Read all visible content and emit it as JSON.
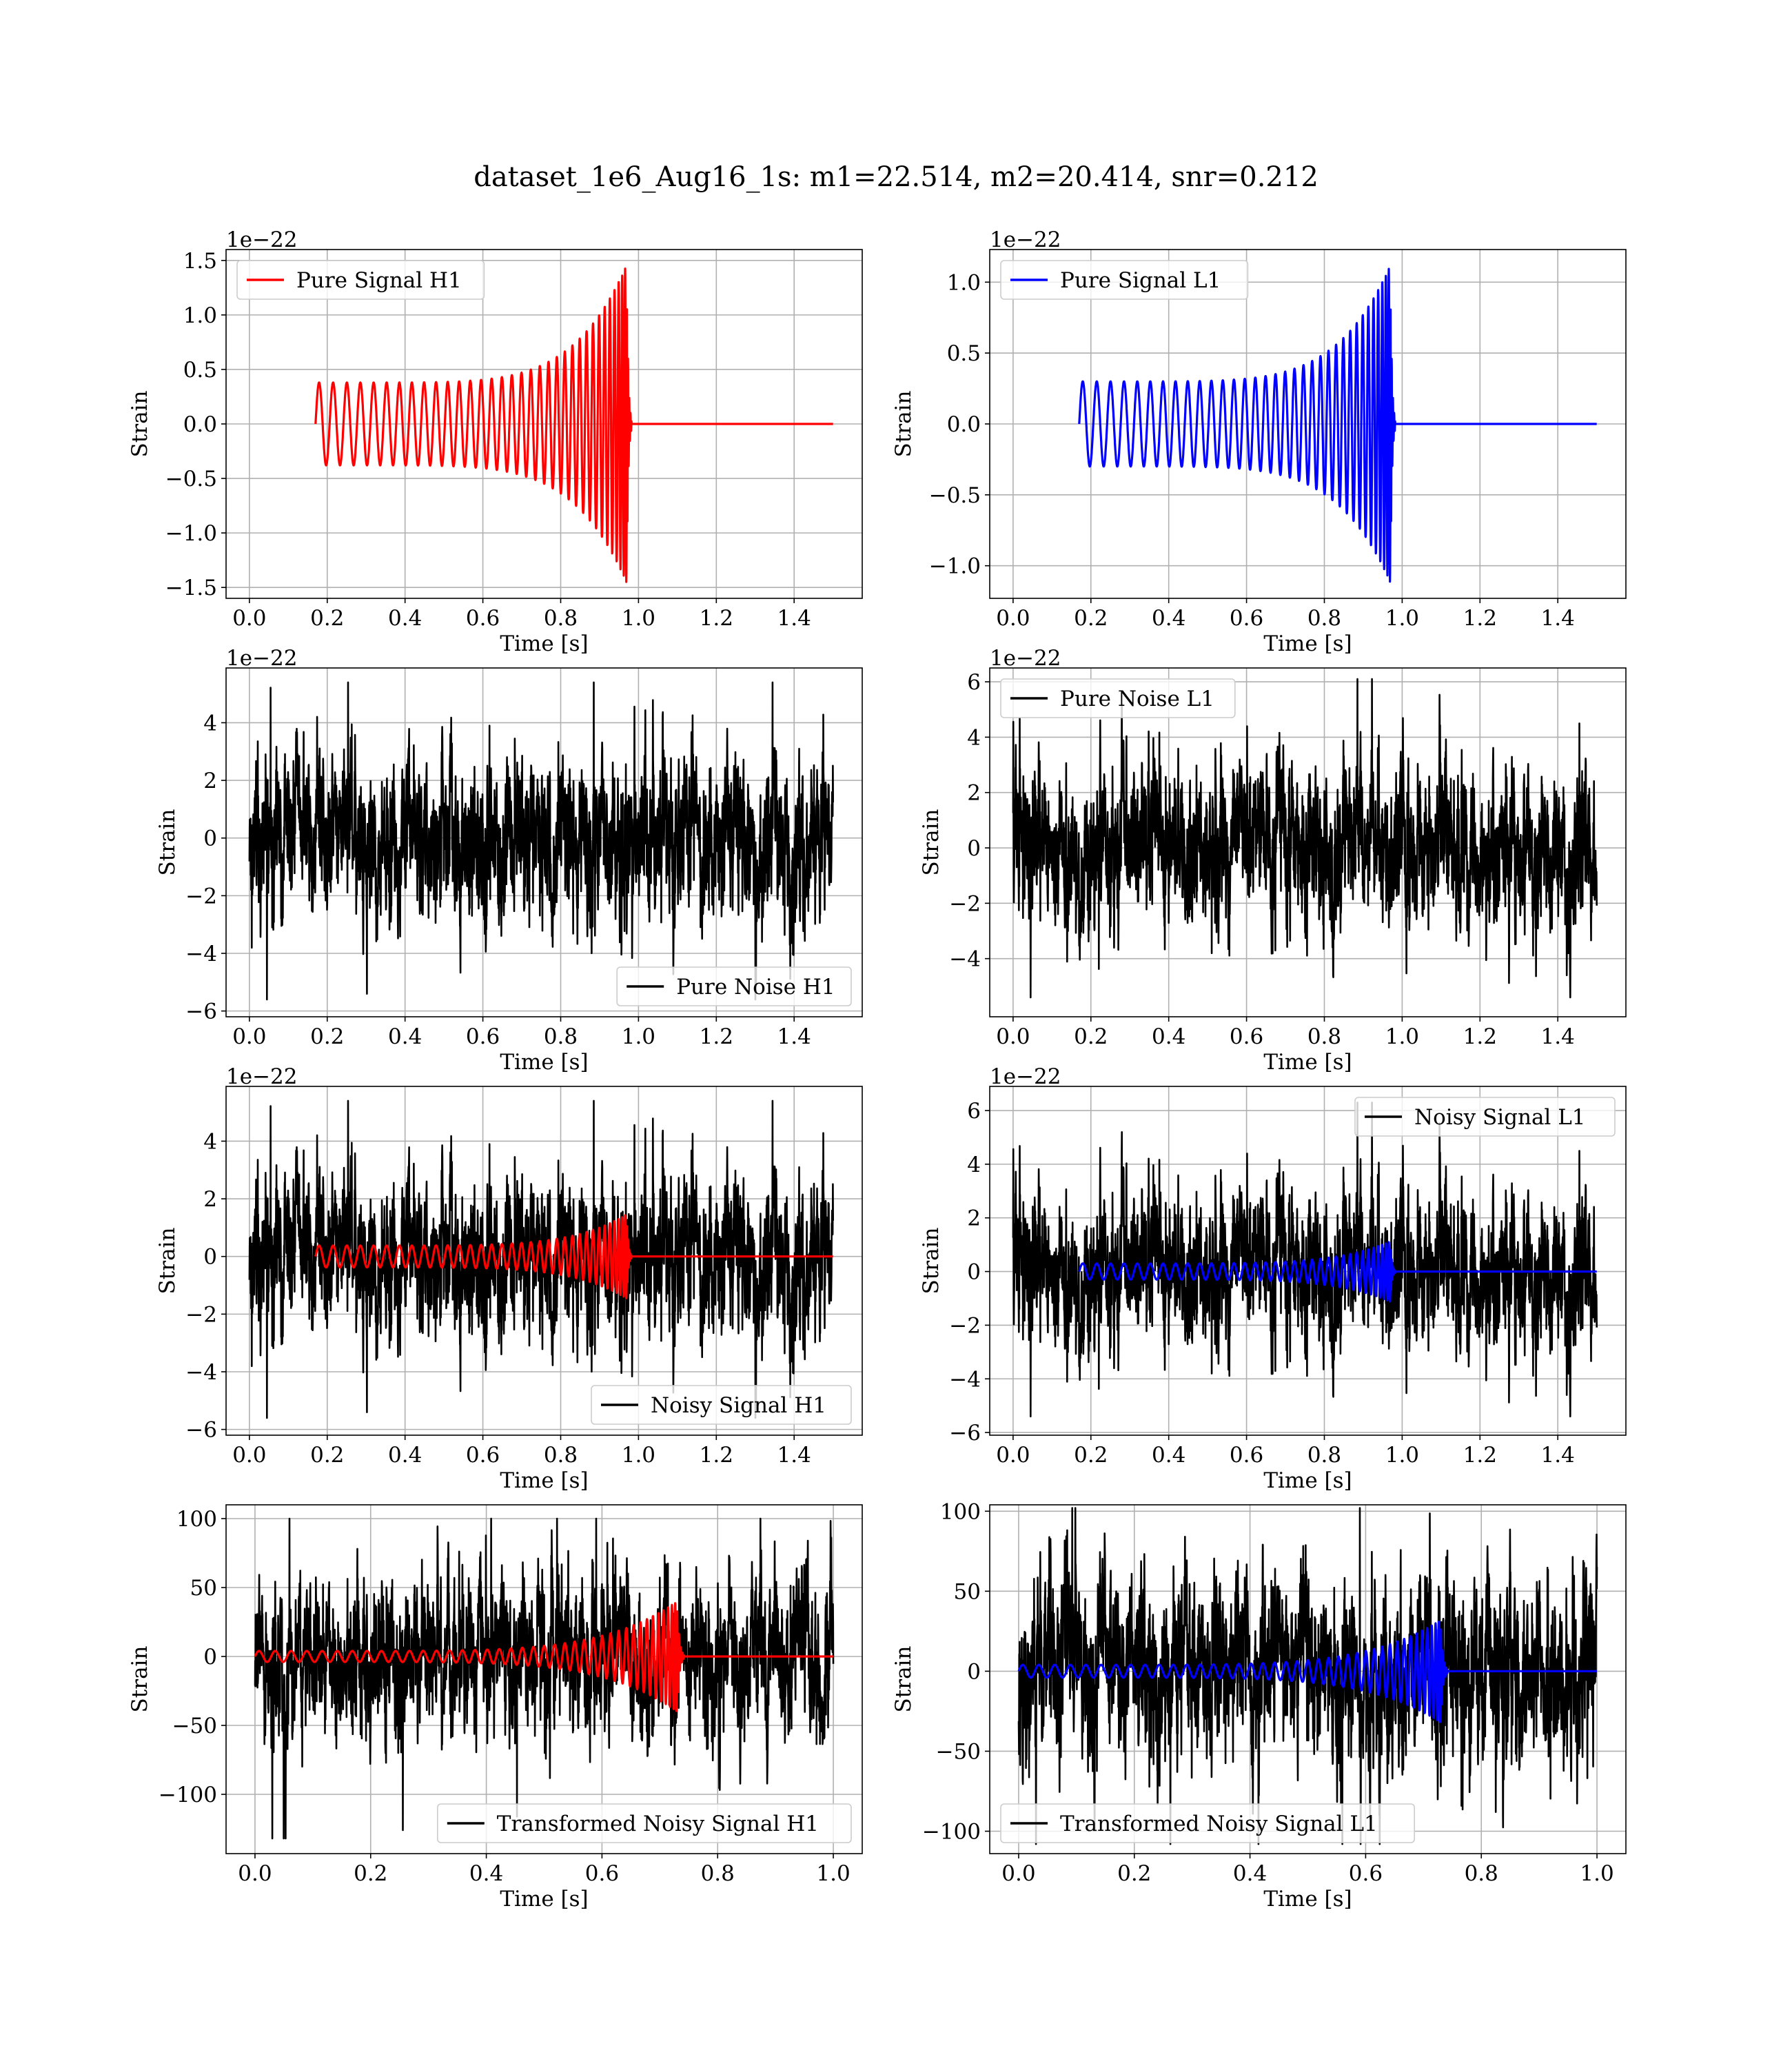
{
  "figure": {
    "suptitle": "dataset_1e6_Aug16_1s: m1=22.514, m2=20.414, snr=0.212"
  },
  "colors": {
    "h1_signal": "#ff0000",
    "l1_signal": "#0000ff",
    "noise": "#000000",
    "grid": "#b0b0b0"
  },
  "chart_data": [
    {
      "id": "pure-signal-h1",
      "type": "line",
      "xlabel": "Time [s]",
      "ylabel": "Strain",
      "offset_text": "1e−22",
      "xlim": [
        -0.06,
        1.575
      ],
      "ylim": [
        -1.6,
        1.6
      ],
      "xticks": [
        0.0,
        0.2,
        0.4,
        0.6,
        0.8,
        1.0,
        1.2,
        1.4
      ],
      "xtick_labels": [
        "0.0",
        "0.2",
        "0.4",
        "0.6",
        "0.8",
        "1.0",
        "1.2",
        "1.4"
      ],
      "yticks": [
        -1.5,
        -1.0,
        -0.5,
        0.0,
        0.5,
        1.0,
        1.5
      ],
      "ytick_labels": [
        "−1.5",
        "−1.0",
        "−0.5",
        "0.0",
        "0.5",
        "1.0",
        "1.5"
      ],
      "grid": true,
      "legend": {
        "placement": "upper-left",
        "entries": [
          {
            "label": "Pure Signal H1",
            "color": "#ff0000"
          }
        ]
      },
      "series": [
        {
          "label": "Pure Signal H1",
          "kind": "chirp",
          "color": "#ff0000",
          "t_start": 0.17,
          "t_merge": 0.97,
          "t_end": 1.5,
          "cycles": 34,
          "amp_start": 0.38,
          "amp_peak": 1.46,
          "value_after_merger": 0.0
        }
      ]
    },
    {
      "id": "pure-signal-l1",
      "type": "line",
      "xlabel": "Time [s]",
      "ylabel": "Strain",
      "offset_text": "1e−22",
      "xlim": [
        -0.06,
        1.575
      ],
      "ylim": [
        -1.23,
        1.23
      ],
      "xticks": [
        0.0,
        0.2,
        0.4,
        0.6,
        0.8,
        1.0,
        1.2,
        1.4
      ],
      "xtick_labels": [
        "0.0",
        "0.2",
        "0.4",
        "0.6",
        "0.8",
        "1.0",
        "1.2",
        "1.4"
      ],
      "yticks": [
        -1.0,
        -0.5,
        0.0,
        0.5,
        1.0
      ],
      "ytick_labels": [
        "−1.0",
        "−0.5",
        "0.0",
        "0.5",
        "1.0"
      ],
      "grid": true,
      "legend": {
        "placement": "upper-left",
        "entries": [
          {
            "label": "Pure Signal L1",
            "color": "#0000ff"
          }
        ]
      },
      "series": [
        {
          "label": "Pure Signal L1",
          "kind": "chirp",
          "color": "#0000ff",
          "t_start": 0.17,
          "t_merge": 0.97,
          "t_end": 1.5,
          "cycles": 34,
          "amp_start": 0.3,
          "amp_peak": 1.12,
          "value_after_merger": 0.0
        }
      ]
    },
    {
      "id": "pure-noise-h1",
      "type": "line",
      "xlabel": "Time [s]",
      "ylabel": "Strain",
      "offset_text": "1e−22",
      "xlim": [
        -0.06,
        1.575
      ],
      "ylim": [
        -6.2,
        5.9
      ],
      "xticks": [
        0.0,
        0.2,
        0.4,
        0.6,
        0.8,
        1.0,
        1.2,
        1.4
      ],
      "xtick_labels": [
        "0.0",
        "0.2",
        "0.4",
        "0.6",
        "0.8",
        "1.0",
        "1.2",
        "1.4"
      ],
      "yticks": [
        -6,
        -4,
        -2,
        0,
        2,
        4
      ],
      "ytick_labels": [
        "−6",
        "−4",
        "−2",
        "0",
        "2",
        "4"
      ],
      "grid": true,
      "legend": {
        "placement": "lower-right",
        "entries": [
          {
            "label": "Pure Noise H1",
            "color": "#000000"
          }
        ]
      },
      "series": [
        {
          "label": "Pure Noise H1",
          "kind": "noise",
          "color": "#000000",
          "t_start": 0.0,
          "t_end": 1.5,
          "y_min": -5.6,
          "y_max": 5.4,
          "typical_amplitude": 1.45,
          "seed": 11
        }
      ]
    },
    {
      "id": "pure-noise-l1",
      "type": "line",
      "xlabel": "Time [s]",
      "ylabel": "Strain",
      "offset_text": "1e−22",
      "xlim": [
        -0.06,
        1.575
      ],
      "ylim": [
        -6.1,
        6.5
      ],
      "xticks": [
        0.0,
        0.2,
        0.4,
        0.6,
        0.8,
        1.0,
        1.2,
        1.4
      ],
      "xtick_labels": [
        "0.0",
        "0.2",
        "0.4",
        "0.6",
        "0.8",
        "1.0",
        "1.2",
        "1.4"
      ],
      "yticks": [
        -4,
        -2,
        0,
        2,
        4,
        6
      ],
      "ytick_labels": [
        "−4",
        "−2",
        "0",
        "2",
        "4",
        "6"
      ],
      "grid": true,
      "legend": {
        "placement": "upper-left",
        "entries": [
          {
            "label": "Pure Noise L1",
            "color": "#000000"
          }
        ]
      },
      "series": [
        {
          "label": "Pure Noise L1",
          "kind": "noise",
          "color": "#000000",
          "t_start": 0.0,
          "t_end": 1.5,
          "y_min": -5.4,
          "y_max": 6.1,
          "typical_amplitude": 1.5,
          "seed": 23
        }
      ]
    },
    {
      "id": "noisy-signal-h1",
      "type": "line",
      "xlabel": "Time [s]",
      "ylabel": "Strain",
      "offset_text": "1e−22",
      "xlim": [
        -0.06,
        1.575
      ],
      "ylim": [
        -6.2,
        5.9
      ],
      "xticks": [
        0.0,
        0.2,
        0.4,
        0.6,
        0.8,
        1.0,
        1.2,
        1.4
      ],
      "xtick_labels": [
        "0.0",
        "0.2",
        "0.4",
        "0.6",
        "0.8",
        "1.0",
        "1.2",
        "1.4"
      ],
      "yticks": [
        -6,
        -4,
        -2,
        0,
        2,
        4
      ],
      "ytick_labels": [
        "−6",
        "−4",
        "−2",
        "0",
        "2",
        "4"
      ],
      "grid": true,
      "legend": {
        "placement": "lower-right",
        "entries": [
          {
            "label": "Noisy Signal H1",
            "color": "#000000"
          }
        ]
      },
      "series": [
        {
          "label": "Noisy Signal H1",
          "kind": "noise",
          "color": "#000000",
          "t_start": 0.0,
          "t_end": 1.5,
          "y_min": -5.6,
          "y_max": 5.4,
          "typical_amplitude": 1.45,
          "seed": 11
        },
        {
          "label": "",
          "kind": "chirp",
          "color": "#ff0000",
          "t_start": 0.17,
          "t_merge": 0.97,
          "t_end": 1.5,
          "cycles": 34,
          "amp_start": 0.38,
          "amp_peak": 1.46,
          "value_after_merger": 0.0
        }
      ]
    },
    {
      "id": "noisy-signal-l1",
      "type": "line",
      "xlabel": "Time [s]",
      "ylabel": "Strain",
      "offset_text": "1e−22",
      "xlim": [
        -0.06,
        1.575
      ],
      "ylim": [
        -6.1,
        6.9
      ],
      "xticks": [
        0.0,
        0.2,
        0.4,
        0.6,
        0.8,
        1.0,
        1.2,
        1.4
      ],
      "xtick_labels": [
        "0.0",
        "0.2",
        "0.4",
        "0.6",
        "0.8",
        "1.0",
        "1.2",
        "1.4"
      ],
      "yticks": [
        -6,
        -4,
        -2,
        0,
        2,
        4,
        6
      ],
      "ytick_labels": [
        "−6",
        "−4",
        "−2",
        "0",
        "2",
        "4",
        "6"
      ],
      "grid": true,
      "legend": {
        "placement": "upper-right",
        "entries": [
          {
            "label": "Noisy Signal L1",
            "color": "#000000"
          }
        ]
      },
      "series": [
        {
          "label": "Noisy Signal L1",
          "kind": "noise",
          "color": "#000000",
          "t_start": 0.0,
          "t_end": 1.5,
          "y_min": -5.4,
          "y_max": 6.3,
          "typical_amplitude": 1.5,
          "seed": 23
        },
        {
          "label": "",
          "kind": "chirp",
          "color": "#0000ff",
          "t_start": 0.17,
          "t_merge": 0.97,
          "t_end": 1.5,
          "cycles": 34,
          "amp_start": 0.3,
          "amp_peak": 1.12,
          "value_after_merger": 0.0
        }
      ]
    },
    {
      "id": "transformed-noisy-signal-h1",
      "type": "line",
      "xlabel": "Time [s]",
      "ylabel": "Strain",
      "offset_text": "",
      "xlim": [
        -0.05,
        1.05
      ],
      "ylim": [
        -143,
        110
      ],
      "xticks": [
        0.0,
        0.2,
        0.4,
        0.6,
        0.8,
        1.0
      ],
      "xtick_labels": [
        "0.0",
        "0.2",
        "0.4",
        "0.6",
        "0.8",
        "1.0"
      ],
      "yticks": [
        -100,
        -50,
        0,
        50,
        100
      ],
      "ytick_labels": [
        "−100",
        "−50",
        "0",
        "50",
        "100"
      ],
      "grid": true,
      "legend": {
        "placement": "lower-right",
        "entries": [
          {
            "label": "Transformed Noisy Signal H1",
            "color": "#000000"
          }
        ]
      },
      "series": [
        {
          "label": "Transformed Noisy Signal H1",
          "kind": "noise",
          "color": "#000000",
          "t_start": 0.0,
          "t_end": 1.0,
          "y_min": -132,
          "y_max": 100,
          "typical_amplitude": 30,
          "seed": 37
        },
        {
          "label": "",
          "kind": "chirp",
          "color": "#ff0000",
          "t_start": 0.0,
          "t_merge": 0.73,
          "t_end": 1.0,
          "cycles": 40,
          "amp_start": 4,
          "amp_peak": 40,
          "value_after_merger": 0.0
        }
      ]
    },
    {
      "id": "transformed-noisy-signal-l1",
      "type": "line",
      "xlabel": "Time [s]",
      "ylabel": "Strain",
      "offset_text": "",
      "xlim": [
        -0.05,
        1.05
      ],
      "ylim": [
        -114,
        104
      ],
      "xticks": [
        0.0,
        0.2,
        0.4,
        0.6,
        0.8,
        1.0
      ],
      "xtick_labels": [
        "0.0",
        "0.2",
        "0.4",
        "0.6",
        "0.8",
        "1.0"
      ],
      "yticks": [
        -100,
        -50,
        0,
        50,
        100
      ],
      "ytick_labels": [
        "−100",
        "−50",
        "0",
        "50",
        "100"
      ],
      "grid": true,
      "legend": {
        "placement": "lower-left",
        "entries": [
          {
            "label": "Transformed Noisy Signal L1",
            "color": "#000000"
          }
        ]
      },
      "series": [
        {
          "label": "Transformed Noisy Signal L1",
          "kind": "noise",
          "color": "#000000",
          "t_start": 0.0,
          "t_end": 1.0,
          "y_min": -108,
          "y_max": 102,
          "typical_amplitude": 30,
          "seed": 53
        },
        {
          "label": "",
          "kind": "chirp",
          "color": "#0000ff",
          "t_start": 0.0,
          "t_merge": 0.73,
          "t_end": 1.0,
          "cycles": 40,
          "amp_start": 4,
          "amp_peak": 32,
          "value_after_merger": 0.0
        }
      ]
    }
  ]
}
